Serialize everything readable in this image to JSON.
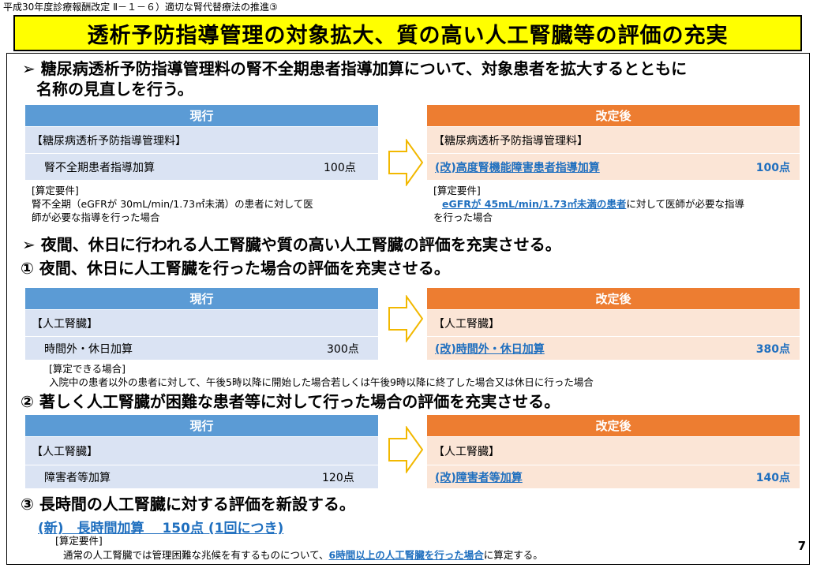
{
  "header": {
    "tag": "平成30年度診療報酬改定 Ⅱ－１－６）適切な腎代替療法の推進③",
    "title": "透析予防指導管理の対象拡大、質の高い人工腎臓等の評価の充実"
  },
  "section1": {
    "bullet": "➢ 糖尿病透析予防指導管理料の腎不全期患者指導加算について、対象患者を拡大するとともに",
    "bullet2": "名称の見直しを行う。",
    "current_label": "現行",
    "revised_label": "改定後",
    "current_name": "【糖尿病透析予防指導管理料】",
    "current_item": "腎不全期患者指導加算",
    "current_points": "100点",
    "revised_name": "【糖尿病透析予防指導管理料】",
    "revised_item": "(改)高度腎機能障害患者指導加算",
    "revised_points": "100点",
    "current_req_title": "[算定要件]",
    "current_req1": "腎不全期（eGFRが 30mL/min/1.73㎡未満）の患者に対して医",
    "current_req2": "師が必要な指導を行った場合",
    "revised_req_title": "[算定要件]",
    "revised_req_highlight": "eGFRが 45mL/min/1.73㎡未満の患者",
    "revised_req_rest": "に対して医師が必要な指導",
    "revised_req2": "を行った場合"
  },
  "section2": {
    "bullet": "➢ 夜間、休日に行われる人工腎臓や質の高い人工腎臓の評価を充実させる。",
    "sub1": "① 夜間、休日に人工腎臓を行った場合の評価を充実させる。",
    "current_label": "現行",
    "revised_label": "改定後",
    "current_name": "【人工腎臓】",
    "current_item": "時間外・休日加算",
    "current_points": "300点",
    "revised_name": "【人工腎臓】",
    "revised_item": "(改)時間外・休日加算",
    "revised_points": "380点",
    "req_title": "[算定できる場合]",
    "req_text": "入院中の患者以外の患者に対して、午後5時以降に開始した場合若しくは午後9時以降に終了した場合又は休日に行った場合"
  },
  "section3": {
    "sub2": "② 著しく人工腎臓が困難な患者等に対して行った場合の評価を充実させる。",
    "current_label": "現行",
    "revised_label": "改定後",
    "current_name": "【人工腎臓】",
    "current_item": "障害者等加算",
    "current_points": "120点",
    "revised_name": "【人工腎臓】",
    "revised_item": "(改)障害者等加算",
    "revised_points": "140点"
  },
  "section4": {
    "sub3": "③ 長時間の人工腎臓に対する評価を新設する。",
    "new_item": "(新)　長時間加算　 150点 (1回につき)",
    "req_title": "[算定要件]",
    "req_pre": "通常の人工腎臓では管理困難な兆候を有するものについて、",
    "req_highlight": "6時間以上の人工腎臓を行った場合",
    "req_post": "に算定する。"
  },
  "page_number": "7",
  "colors": {
    "current_header": "#5b9bd5",
    "revised_header": "#ed7d31",
    "current_cell": "#dae3f3",
    "revised_cell": "#fbe5d6",
    "title_bg": "#ffff00",
    "highlight_text": "#1f6fbf"
  }
}
